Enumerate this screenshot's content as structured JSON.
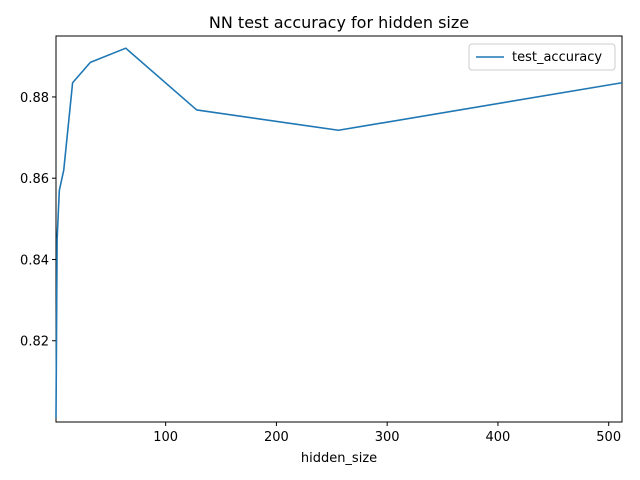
{
  "chart_data": {
    "type": "line",
    "title": "NN test accuracy for hidden size",
    "xlabel": "hidden_size",
    "ylabel": "",
    "xlim": [
      1,
      512
    ],
    "ylim": [
      0.8,
      0.895
    ],
    "xticks": [
      100,
      200,
      300,
      400,
      500
    ],
    "yticks": [
      0.82,
      0.84,
      0.86,
      0.88
    ],
    "xtick_labels": [
      "100",
      "200",
      "300",
      "400",
      "500"
    ],
    "ytick_labels": [
      "0.82",
      "0.84",
      "0.86",
      "0.88"
    ],
    "grid": false,
    "legend_position": "upper right",
    "series": [
      {
        "name": "test_accuracy",
        "color": "#1f77b4",
        "x": [
          1,
          2,
          4,
          8,
          16,
          32,
          64,
          128,
          256,
          512
        ],
        "y": [
          0.801,
          0.845,
          0.857,
          0.862,
          0.8835,
          0.8885,
          0.892,
          0.8768,
          0.8718,
          0.8835
        ]
      }
    ]
  }
}
